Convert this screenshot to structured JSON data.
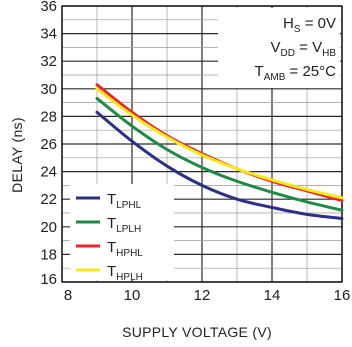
{
  "chart_data": {
    "type": "line",
    "xlabel": "SUPPLY VOLTAGE (V)",
    "ylabel": "DELAY (ns)",
    "xlim": [
      8,
      16
    ],
    "ylim": [
      16,
      36
    ],
    "x_ticks": [
      "8",
      "10",
      "12",
      "14",
      "16"
    ],
    "y_ticks": [
      "16",
      "18",
      "20",
      "22",
      "24",
      "26",
      "28",
      "30",
      "32",
      "34",
      "36"
    ],
    "grid": true,
    "annotations": [
      {
        "main": "H",
        "sub": "S",
        "rest": " = 0V"
      },
      {
        "main": "V",
        "sub": "DD",
        "rest": " = V",
        "sub2": "HB"
      },
      {
        "main": "T",
        "sub": "AMB",
        "rest": " = 25°C"
      }
    ],
    "legend_position": "bottom-left",
    "series": [
      {
        "name_main": "T",
        "name_sub": "LPHL",
        "color": "#2b2f86",
        "x": [
          9,
          10,
          11,
          12,
          13,
          14,
          15,
          16
        ],
        "y": [
          28.3,
          26.2,
          24.4,
          23.0,
          22.0,
          21.4,
          20.9,
          20.6
        ]
      },
      {
        "name_main": "T",
        "name_sub": "LPLH",
        "color": "#1f8a44",
        "x": [
          9,
          10,
          11,
          12,
          13,
          14,
          15,
          16
        ],
        "y": [
          29.3,
          27.3,
          25.6,
          24.3,
          23.3,
          22.5,
          21.8,
          21.2
        ]
      },
      {
        "name_main": "T",
        "name_sub": "HPHL",
        "color": "#e8262b",
        "x": [
          9,
          10,
          11,
          12,
          13,
          14,
          15,
          16
        ],
        "y": [
          30.3,
          28.3,
          26.6,
          25.3,
          24.2,
          23.3,
          22.6,
          21.9
        ]
      },
      {
        "name_main": "T",
        "name_sub": "HPLH",
        "color": "#f6e81c",
        "x": [
          9,
          10,
          11,
          12,
          13,
          14,
          15,
          16
        ],
        "y": [
          30.0,
          28.1,
          26.5,
          25.2,
          24.2,
          23.4,
          22.7,
          22.1
        ]
      }
    ]
  }
}
